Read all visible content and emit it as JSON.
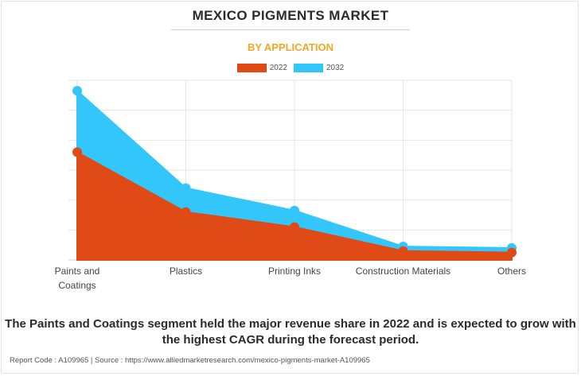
{
  "header": {
    "title": "MEXICO PIGMENTS MARKET",
    "subtitle": "BY APPLICATION"
  },
  "legend": {
    "items": [
      {
        "label": "2022",
        "color": "#e04a17"
      },
      {
        "label": "2032",
        "color": "#33c6fb"
      }
    ]
  },
  "chart_data": {
    "type": "area",
    "categories": [
      "Paints and Coatings",
      "Plastics",
      "Printing Inks",
      "Construction Materials",
      "Others"
    ],
    "category_label_lines": [
      [
        "Paints and",
        "Coatings"
      ],
      [
        "Plastics"
      ],
      [
        "Printing Inks"
      ],
      [
        "Construction Materials"
      ],
      [
        "Others"
      ]
    ],
    "series": [
      {
        "name": "2032",
        "color": "#33c6fb",
        "values": [
          113,
          48,
          33,
          9,
          8
        ]
      },
      {
        "name": "2022",
        "color": "#e04a17",
        "values": [
          72,
          32,
          22,
          6,
          5
        ]
      }
    ],
    "ylim": [
      0,
      120
    ],
    "grid": true,
    "legend_position": "top-center",
    "y_tick_labels_shown": false
  },
  "caption": "The Paints and Coatings segment held the major revenue share in 2022 and is expected to grow with the highest CAGR during the forecast period.",
  "footer": "Report Code : A109965  |  Source : https://www.alliedmarketresearch.com/mexico-pigments-market-A109965"
}
